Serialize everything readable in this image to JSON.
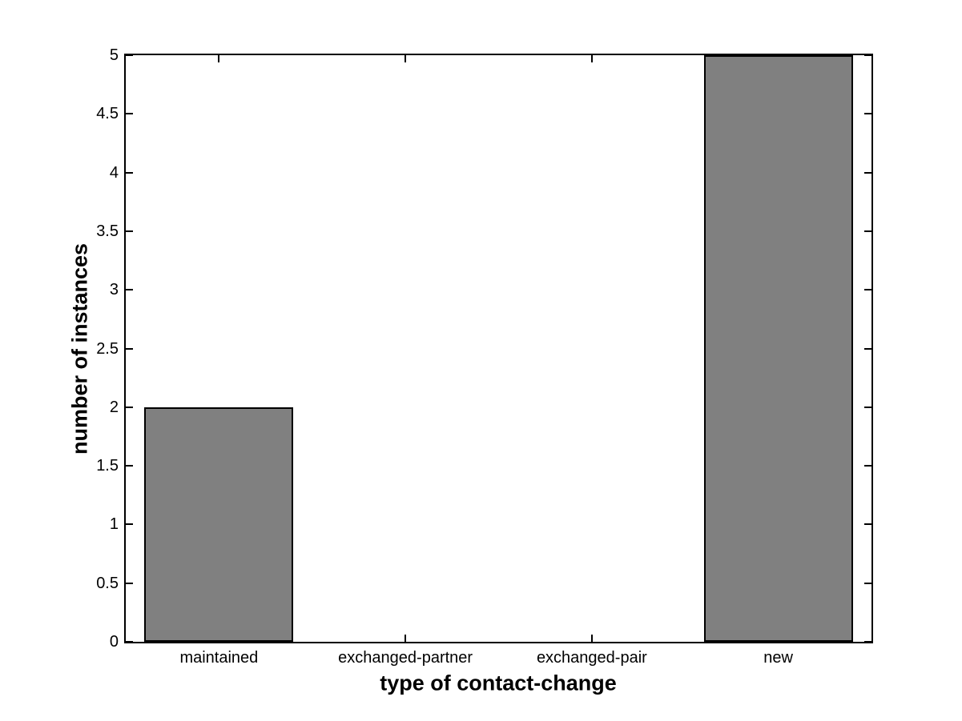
{
  "figure": {
    "background_color": "#ffffff",
    "axis_color": "#000000"
  },
  "chart_data": {
    "type": "bar",
    "categories": [
      "maintained",
      "exchanged-partner",
      "exchanged-pair",
      "new"
    ],
    "values": [
      2,
      0,
      0,
      5
    ],
    "title": "",
    "xlabel": "type of contact-change",
    "ylabel": "number of instances",
    "ylim": [
      0,
      5
    ],
    "ytick_step": 0.5,
    "ytick_labels": [
      "0",
      "0.5",
      "1",
      "1.5",
      "2",
      "2.5",
      "3",
      "3.5",
      "4",
      "4.5",
      "5"
    ],
    "xlim": [
      0.5,
      4.5
    ],
    "category_positions": [
      1,
      2,
      3,
      4
    ],
    "bar_width_fraction": 0.8,
    "bar_fill_color": "#808080",
    "bar_edge_color": "#000000",
    "grid": false,
    "legend": null,
    "tick_direction": "in",
    "box": true
  }
}
